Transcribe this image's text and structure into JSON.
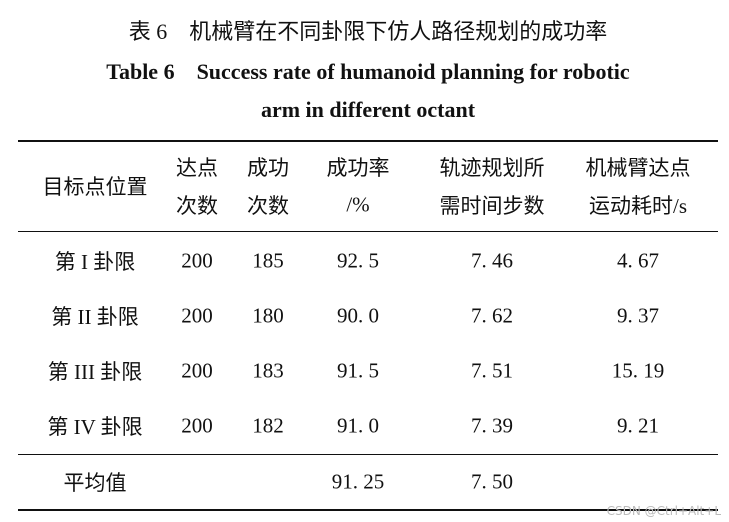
{
  "table": {
    "title_cn": "表 6　机械臂在不同卦限下仿人路径规划的成功率",
    "title_en": [
      "Table 6　Success rate of humanoid planning for robotic",
      "arm in different octant"
    ],
    "header": [
      [
        "目标点位置"
      ],
      [
        "达点",
        "次数"
      ],
      [
        "成功",
        "次数"
      ],
      [
        "成功率",
        "/%"
      ],
      [
        "轨迹规划所",
        "需时间步数"
      ],
      [
        "机械臂达点",
        "运动耗时/s"
      ]
    ],
    "rows": [
      [
        "第 I 卦限",
        "200",
        "185",
        "92. 5",
        "7. 46",
        "4. 67"
      ],
      [
        "第 II 卦限",
        "200",
        "180",
        "90. 0",
        "7. 62",
        "9. 37"
      ],
      [
        "第 III 卦限",
        "200",
        "183",
        "91. 5",
        "7. 51",
        "15. 19"
      ],
      [
        "第 IV 卦限",
        "200",
        "182",
        "91. 0",
        "7. 39",
        "9. 21"
      ]
    ],
    "average": {
      "label": "平均值",
      "success_rate": "91. 25",
      "steps": "7. 50"
    }
  },
  "watermark": "CSDN @Ctrl+Alt+L"
}
